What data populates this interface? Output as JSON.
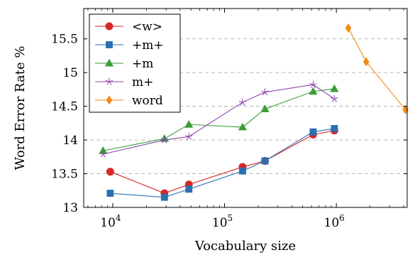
{
  "chart_data": {
    "type": "line",
    "title": "",
    "xlabel": "Vocabulary size",
    "ylabel": "Word Error Rate %",
    "xscale": "log",
    "xlim": [
      5500,
      4300000
    ],
    "ylim": [
      13.0,
      15.95
    ],
    "grid": "horizontal dashed",
    "legend_position": "top-left",
    "x_ticks": [
      {
        "value": 10000,
        "base": "10",
        "exp": "4"
      },
      {
        "value": 100000,
        "base": "10",
        "exp": "5"
      },
      {
        "value": 1000000,
        "base": "10",
        "exp": "6"
      }
    ],
    "y_ticks": [
      {
        "value": 13.0,
        "label": "13"
      },
      {
        "value": 13.5,
        "label": "13.5"
      },
      {
        "value": 14.0,
        "label": "14"
      },
      {
        "value": 14.5,
        "label": "14.5"
      },
      {
        "value": 15.0,
        "label": "15"
      },
      {
        "value": 15.5,
        "label": "15.5"
      }
    ],
    "series": [
      {
        "name": "<w>",
        "color": "#d62728",
        "marker": "circle",
        "points": [
          [
            9500,
            13.53
          ],
          [
            29000,
            13.21
          ],
          [
            48000,
            13.34
          ],
          [
            145000,
            13.6
          ],
          [
            230000,
            13.69
          ],
          [
            620000,
            14.08
          ],
          [
            960000,
            14.14
          ]
        ]
      },
      {
        "name": "+m+",
        "color": "#2a6fb0",
        "marker": "square",
        "points": [
          [
            9500,
            13.21
          ],
          [
            29000,
            13.15
          ],
          [
            48000,
            13.27
          ],
          [
            145000,
            13.54
          ],
          [
            230000,
            13.69
          ],
          [
            620000,
            14.12
          ],
          [
            960000,
            14.17
          ]
        ]
      },
      {
        "name": "+m",
        "color": "#3a9e3a",
        "marker": "triangle",
        "points": [
          [
            8200,
            13.84
          ],
          [
            29000,
            14.02
          ],
          [
            48000,
            14.23
          ],
          [
            145000,
            14.19
          ],
          [
            230000,
            14.46
          ],
          [
            620000,
            14.72
          ],
          [
            960000,
            14.76
          ]
        ]
      },
      {
        "name": "m+",
        "color": "#8e44ad",
        "marker": "star",
        "points": [
          [
            8200,
            13.79
          ],
          [
            29000,
            14.0
          ],
          [
            48000,
            14.05
          ],
          [
            145000,
            14.56
          ],
          [
            230000,
            14.71
          ],
          [
            620000,
            14.82
          ],
          [
            960000,
            14.61
          ]
        ]
      },
      {
        "name": "word",
        "color": "#f28a1a",
        "marker": "diamond",
        "points": [
          [
            1280000,
            15.66
          ],
          [
            1850000,
            15.16
          ],
          [
            4150000,
            14.45
          ]
        ]
      }
    ]
  }
}
